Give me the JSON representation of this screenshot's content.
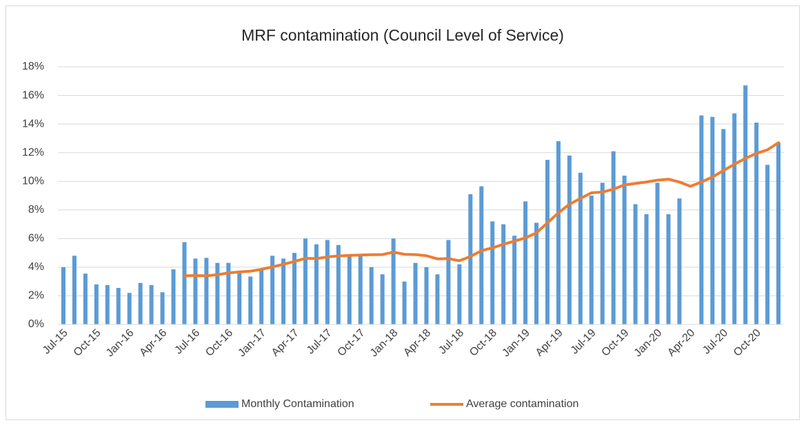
{
  "chart_data": {
    "type": "bar",
    "title": "MRF contamination (Council Level of Service)",
    "categories": [
      "Jul-15",
      null,
      null,
      "Oct-15",
      null,
      null,
      "Jan-16",
      null,
      null,
      "Apr-16",
      null,
      null,
      "Jul-16",
      null,
      null,
      "Oct-16",
      null,
      null,
      "Jan-17",
      null,
      null,
      "Apr-17",
      null,
      null,
      "Jul-17",
      null,
      null,
      "Oct-17",
      null,
      null,
      "Jan-18",
      null,
      null,
      "Apr-18",
      null,
      null,
      "Jul-18",
      null,
      null,
      "Oct-18",
      null,
      null,
      "Jan-19",
      null,
      null,
      "Apr-19",
      null,
      null,
      "Jul-19",
      null,
      null,
      "Oct-19",
      null,
      null,
      "Jan-20",
      null,
      null,
      "Apr-20",
      null,
      null,
      "Jul-20",
      null,
      null,
      "Oct-20",
      null,
      null
    ],
    "series": [
      {
        "name": "Monthly Contamination",
        "type": "bar",
        "color": "#5b9bd5",
        "values": [
          4.0,
          4.8,
          3.55,
          2.8,
          2.75,
          2.55,
          2.2,
          2.9,
          2.75,
          2.25,
          3.85,
          5.75,
          4.6,
          4.65,
          4.3,
          4.3,
          3.7,
          3.35,
          3.9,
          4.8,
          4.6,
          5.0,
          6.0,
          5.6,
          5.9,
          5.55,
          4.8,
          4.8,
          4.0,
          3.5,
          6.0,
          3.0,
          4.3,
          4.0,
          3.5,
          5.9,
          4.2,
          9.1,
          9.65,
          7.2,
          7.0,
          6.2,
          8.6,
          7.1,
          11.5,
          12.8,
          11.8,
          10.6,
          9.0,
          9.9,
          12.1,
          10.4,
          8.4,
          7.7,
          9.9,
          7.7,
          8.8,
          null,
          14.6,
          14.5,
          13.65,
          14.75,
          16.7,
          14.1,
          11.15,
          12.7
        ]
      },
      {
        "name": "Average contamination",
        "type": "line",
        "color": "#ed7d31",
        "values": [
          null,
          null,
          null,
          null,
          null,
          null,
          null,
          null,
          null,
          null,
          null,
          3.4,
          3.42,
          3.4,
          3.47,
          3.6,
          3.67,
          3.72,
          3.85,
          4.02,
          4.2,
          4.4,
          4.62,
          4.6,
          4.72,
          4.78,
          4.82,
          4.85,
          4.87,
          4.88,
          5.05,
          4.9,
          4.88,
          4.8,
          4.58,
          4.6,
          4.45,
          4.75,
          5.15,
          5.35,
          5.6,
          5.82,
          6.05,
          6.4,
          7.1,
          7.8,
          8.4,
          8.8,
          9.2,
          9.25,
          9.45,
          9.75,
          9.85,
          9.95,
          10.08,
          10.15,
          9.95,
          9.65,
          9.95,
          10.3,
          10.75,
          11.2,
          11.6,
          11.95,
          12.2,
          12.7
        ]
      }
    ],
    "ylim": [
      0,
      18
    ],
    "yticks": [
      {
        "value": 0,
        "label": "0%"
      },
      {
        "value": 2,
        "label": "2%"
      },
      {
        "value": 4,
        "label": "4%"
      },
      {
        "value": 6,
        "label": "6%"
      },
      {
        "value": 8,
        "label": "8%"
      },
      {
        "value": 10,
        "label": "10%"
      },
      {
        "value": 12,
        "label": "12%"
      },
      {
        "value": 14,
        "label": "14%"
      },
      {
        "value": 16,
        "label": "16%"
      },
      {
        "value": 18,
        "label": "18%"
      }
    ],
    "grid": true,
    "legend": "bottom"
  }
}
